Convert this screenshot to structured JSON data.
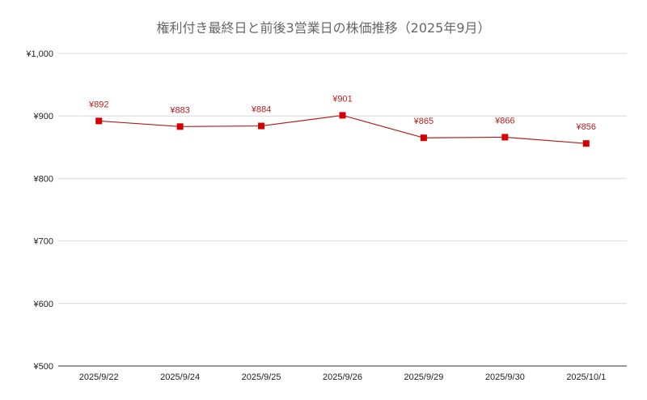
{
  "chart_data": {
    "type": "line",
    "title": "権利付き最終日と前後3営業日の株価推移（2025年9月）",
    "xlabel": "",
    "ylabel": "",
    "categories": [
      "2025/9/22",
      "2025/9/24",
      "2025/9/25",
      "2025/9/26",
      "2025/9/29",
      "2025/9/30",
      "2025/10/1"
    ],
    "series": [
      {
        "values": [
          892,
          883,
          884,
          901,
          865,
          866,
          856
        ],
        "labels": [
          "¥892",
          "¥883",
          "¥884",
          "¥901",
          "¥865",
          "¥866",
          "¥856"
        ],
        "color": "#b71c1c",
        "marker_color": "#d50000"
      }
    ],
    "ylim": [
      500,
      1000
    ],
    "yticks": [
      500,
      600,
      700,
      800,
      900,
      1000
    ],
    "ytick_labels": [
      "¥500",
      "¥600",
      "¥700",
      "¥800",
      "¥900",
      "¥1,000"
    ],
    "grid": true,
    "legend": "none",
    "label_color": "#b71c1c"
  }
}
